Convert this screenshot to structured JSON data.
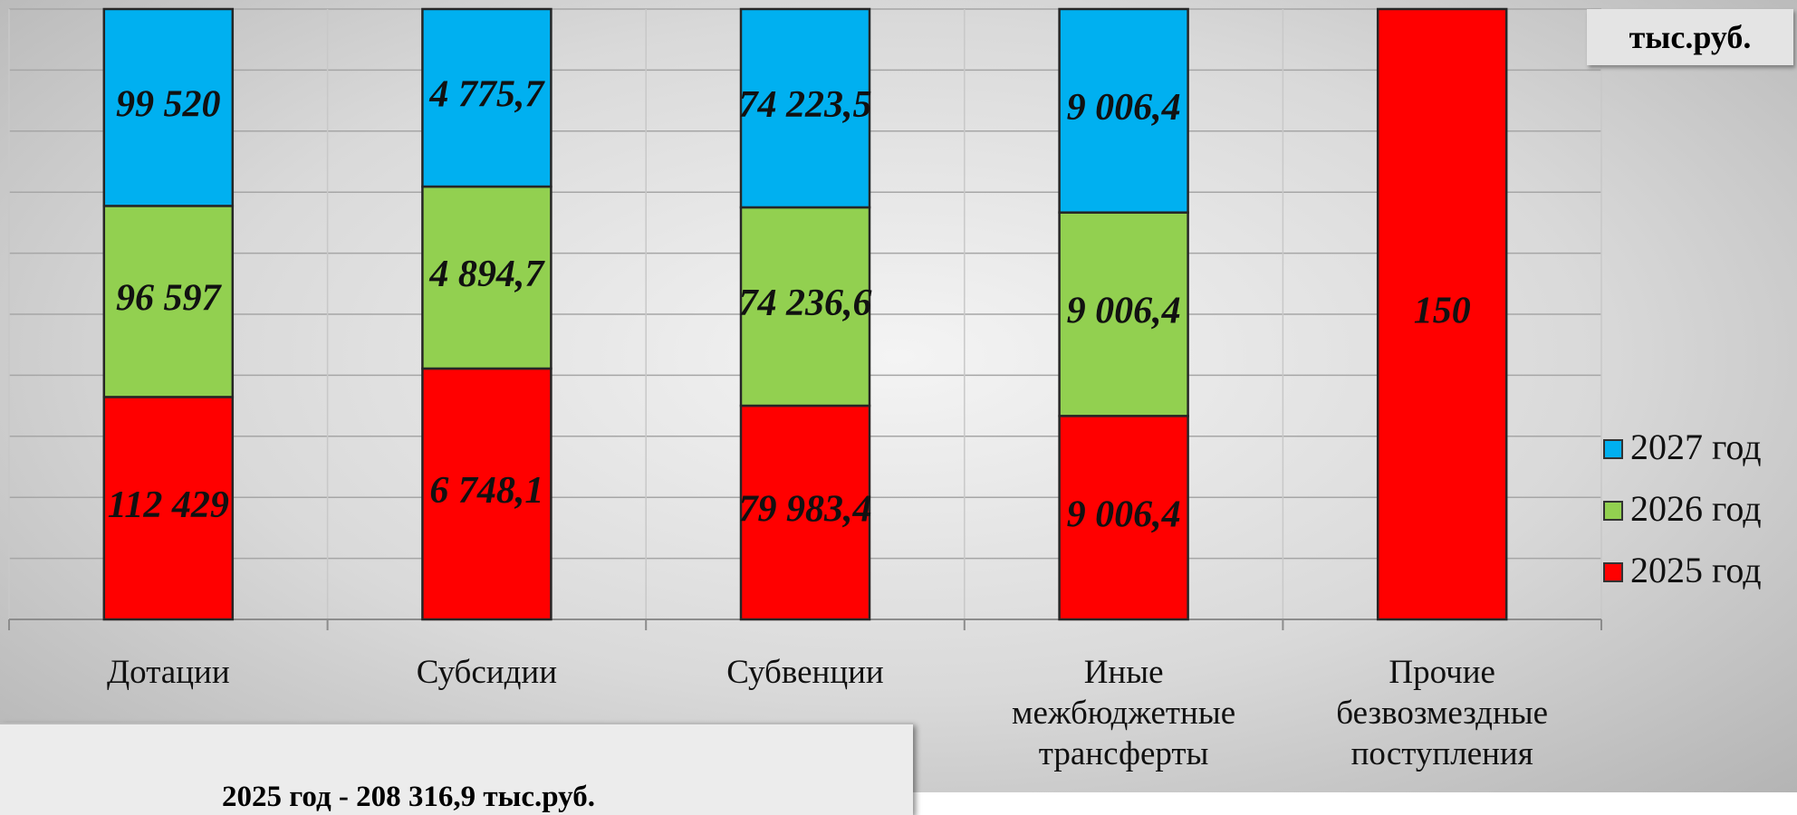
{
  "chart_data": {
    "type": "bar",
    "stacking": "percent",
    "grid": true,
    "unit_label": "тыс.руб.",
    "categories": [
      "Дотации",
      "Субсидии",
      "Субвенции",
      "Иные межбюджетные трансферты",
      "Прочие безвозмездные поступления"
    ],
    "series": [
      {
        "name": "2025 год",
        "color": "#ff0000",
        "values": [
          112429,
          6748.1,
          79983.4,
          9006.4,
          150
        ],
        "value_labels": [
          "112 429",
          "6 748,1",
          "79 983,4",
          "9 006,4",
          "150"
        ]
      },
      {
        "name": "2026 год",
        "color": "#92d050",
        "values": [
          96597,
          4894.7,
          74236.6,
          9006.4,
          null
        ],
        "value_labels": [
          "96 597",
          "4 894,7",
          "74 236,6",
          "9 006,4",
          null
        ]
      },
      {
        "name": "2027 год",
        "color": "#00b0f0",
        "values": [
          99520,
          4775.7,
          74223.5,
          9006.4,
          null
        ],
        "value_labels": [
          "99 520",
          "4 775,7",
          "74 223,5",
          "9 006,4",
          null
        ]
      }
    ],
    "ylim": [
      0,
      100
    ],
    "summary": "2025 год - 208 316,9 тыс.руб."
  }
}
